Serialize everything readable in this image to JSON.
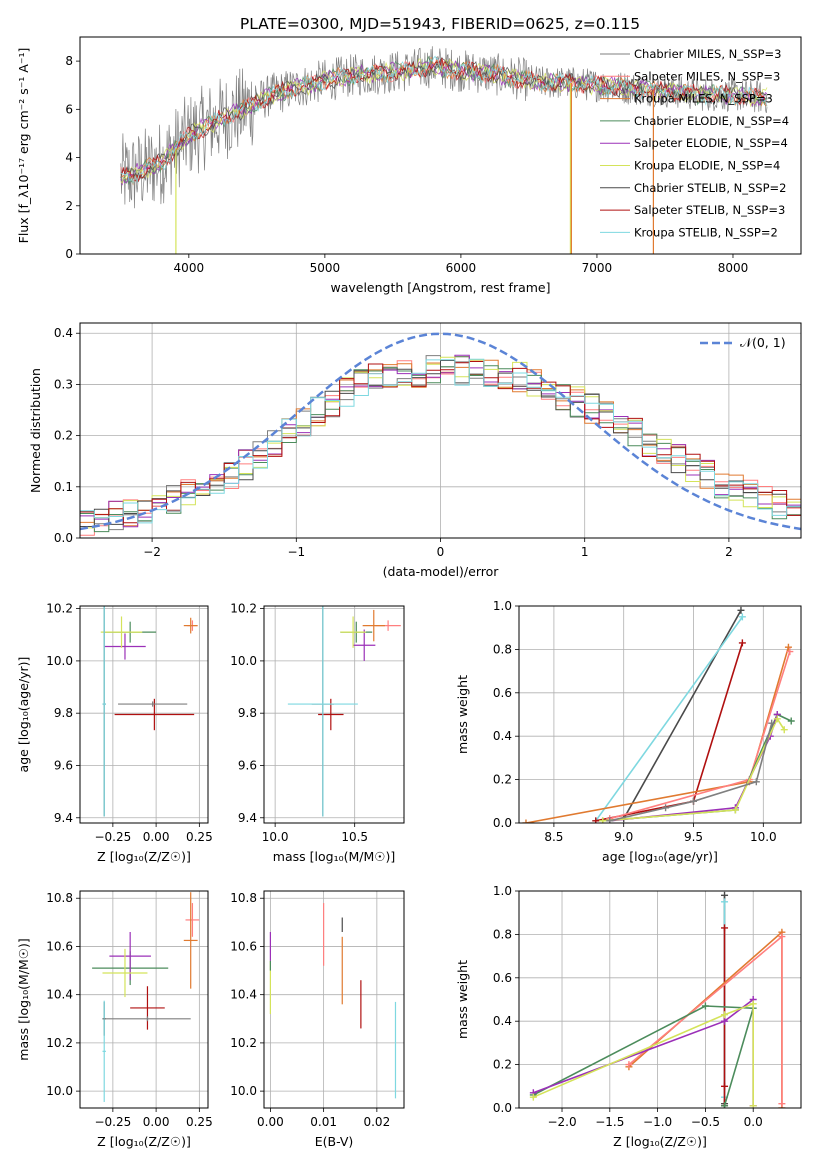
{
  "figure": {
    "title": "PLATE=0300, MJD=51943, FIBERID=0625, z=0.115"
  },
  "chart_data": [
    {
      "id": "spectrum",
      "type": "line",
      "xlabel": "wavelength [Angstrom, rest frame]",
      "ylabel": "Flux [f_λ10⁻¹⁷ erg cm⁻² s⁻¹ A⁻¹]",
      "xlim": [
        3200,
        8500
      ],
      "ylim": [
        0,
        9
      ],
      "xticks": [
        "4000",
        "5000",
        "6000",
        "7000",
        "8000"
      ],
      "yticks": [
        "0",
        "2",
        "4",
        "6",
        "8"
      ],
      "grid": false,
      "legend_position": "upper-right",
      "data_shape": {
        "x": [
          3500,
          3600,
          3800,
          4000,
          4200,
          4400,
          4600,
          4800,
          5000,
          5200,
          5400,
          5600,
          5800,
          6000,
          6200,
          6400,
          6600,
          6800,
          7000,
          7200,
          7400,
          7600,
          7800,
          8000,
          8200,
          8250
        ],
        "y": [
          3.2,
          3.3,
          3.8,
          4.9,
          5.5,
          6.0,
          6.6,
          6.9,
          7.2,
          7.4,
          7.5,
          7.6,
          7.8,
          7.6,
          7.5,
          7.3,
          7.1,
          7.1,
          7.0,
          6.9,
          6.8,
          6.7,
          6.6,
          6.6,
          6.5,
          6.5
        ]
      },
      "series": [
        {
          "name": "Chabrier MILES, N_SSP=3",
          "color": "#7f7f7f"
        },
        {
          "name": "Salpeter MILES, N_SSP=3",
          "color": "#ff7f7f"
        },
        {
          "name": "Kroupa MILES, N_SSP=3",
          "color": "#e07a30"
        },
        {
          "name": "Chabrier ELODIE, N_SSP=4",
          "color": "#4c8c5c"
        },
        {
          "name": "Salpeter ELODIE, N_SSP=4",
          "color": "#9b30b8"
        },
        {
          "name": "Kroupa ELODIE, N_SSP=4",
          "color": "#d4e35a"
        },
        {
          "name": "Chabrier STELIB, N_SSP=2",
          "color": "#4a4a4a"
        },
        {
          "name": "Salpeter STELIB, N_SSP=3",
          "color": "#b01010"
        },
        {
          "name": "Kroupa STELIB, N_SSP=2",
          "color": "#7ed8e0"
        }
      ]
    },
    {
      "id": "residuals",
      "type": "line",
      "xlabel": "(data-model)/error",
      "ylabel": "Normed distribution",
      "xlim": [
        -2.5,
        2.5
      ],
      "ylim": [
        0,
        0.42
      ],
      "xticks": [
        "−2",
        "−1",
        "0",
        "1",
        "2"
      ],
      "yticks": [
        "0.0",
        "0.1",
        "0.2",
        "0.3",
        "0.4"
      ],
      "grid": true,
      "legend": "𝒩(0, 1)",
      "legend_position": "upper-right",
      "gaussian": {
        "mu": 0,
        "sigma": 1,
        "color": "#5b84d6"
      },
      "histogram_envelope": {
        "x": [
          -2.5,
          -2.0,
          -1.5,
          -1.0,
          -0.5,
          0.0,
          0.5,
          1.0,
          1.5,
          2.0,
          2.5
        ],
        "y": [
          0.03,
          0.06,
          0.11,
          0.22,
          0.31,
          0.33,
          0.32,
          0.26,
          0.18,
          0.1,
          0.05
        ]
      }
    },
    {
      "id": "age-vs-Z",
      "type": "scatter",
      "xlabel": "Z [log₁₀(Z/Z☉)]",
      "ylabel": "age  [log₁₀(age/yr)]",
      "xlim": [
        -0.44,
        0.3
      ],
      "ylim": [
        9.38,
        10.21
      ],
      "xticks": [
        "−0.25",
        "0.00",
        "0.25"
      ],
      "yticks": [
        "9.4",
        "9.6",
        "9.8",
        "10.0",
        "10.2"
      ],
      "grid": true,
      "points": [
        {
          "series": "Salpeter MILES, N_SSP=3",
          "x": 0.21,
          "y": 10.135,
          "ex": 0.03,
          "ey": 0.02
        },
        {
          "series": "Kroupa MILES, N_SSP=3",
          "x": 0.2,
          "y": 10.135,
          "ex": 0.04,
          "ey": 0.03
        },
        {
          "series": "Chabrier ELODIE, N_SSP=4",
          "x": -0.15,
          "y": 10.11,
          "ex": 0.15,
          "ey": 0.04
        },
        {
          "series": "Salpeter ELODIE, N_SSP=4",
          "x": -0.18,
          "y": 10.055,
          "ex": 0.12,
          "ey": 0.05
        },
        {
          "series": "Kroupa ELODIE, N_SSP=4",
          "x": -0.2,
          "y": 10.11,
          "ex": 0.12,
          "ey": 0.06
        },
        {
          "series": "Chabrier STELIB, N_SSP=2",
          "x": -0.3,
          "y": 9.835,
          "ex": 0.01,
          "ey": 0.43
        },
        {
          "series": "Salpeter STELIB, N_SSP=3",
          "x": -0.01,
          "y": 9.795,
          "ex": 0.23,
          "ey": 0.06
        },
        {
          "series": "Kroupa STELIB, N_SSP=2",
          "x": -0.3,
          "y": 9.835,
          "ex": 0.01,
          "ey": 0.43
        },
        {
          "series": "Chabrier MILES, N_SSP=3",
          "x": -0.02,
          "y": 9.835,
          "ex": 0.2,
          "ey": 0.01
        }
      ]
    },
    {
      "id": "age-vs-mass",
      "type": "scatter",
      "xlabel": "mass [log₁₀(M/M☉)]",
      "ylabel": "",
      "xlim": [
        9.93,
        10.81
      ],
      "ylim": [
        9.38,
        10.21
      ],
      "xticks": [
        "10.0",
        "10.5"
      ],
      "yticks": [
        "9.4",
        "9.6",
        "9.8",
        "10.0",
        "10.2"
      ],
      "grid": true,
      "points": [
        {
          "series": "Salpeter MILES, N_SSP=3",
          "x": 10.71,
          "y": 10.135,
          "ex": 0.08,
          "ey": 0.02
        },
        {
          "series": "Kroupa MILES, N_SSP=3",
          "x": 10.62,
          "y": 10.135,
          "ex": 0.07,
          "ey": 0.06
        },
        {
          "series": "Chabrier ELODIE, N_SSP=4",
          "x": 10.51,
          "y": 10.11,
          "ex": 0.1,
          "ey": 0.04
        },
        {
          "series": "Salpeter ELODIE, N_SSP=4",
          "x": 10.56,
          "y": 10.06,
          "ex": 0.07,
          "ey": 0.06
        },
        {
          "series": "Kroupa ELODIE, N_SSP=4",
          "x": 10.49,
          "y": 10.11,
          "ex": 0.08,
          "ey": 0.06
        },
        {
          "series": "Chabrier STELIB, N_SSP=2",
          "x": 10.3,
          "y": 9.835,
          "ex": 0.07,
          "ey": 0.43
        },
        {
          "series": "Salpeter STELIB, N_SSP=3",
          "x": 10.35,
          "y": 9.795,
          "ex": 0.08,
          "ey": 0.06
        },
        {
          "series": "Kroupa STELIB, N_SSP=2",
          "x": 10.3,
          "y": 9.835,
          "ex": 0.22,
          "ey": 0.43
        }
      ]
    },
    {
      "id": "weight-vs-age",
      "type": "line",
      "xlabel": "age  [log₁₀(age/yr)]",
      "ylabel": "mass weight",
      "xlim": [
        8.25,
        10.27
      ],
      "ylim": [
        0,
        1
      ],
      "xticks": [
        "8.5",
        "9.0",
        "9.5",
        "10.0"
      ],
      "yticks": [
        "0.0",
        "0.2",
        "0.4",
        "0.6",
        "0.8",
        "1.0"
      ],
      "grid": true,
      "series": [
        {
          "name": "Chabrier STELIB, N_SSP=2",
          "x": [
            9.0,
            9.84
          ],
          "y": [
            0.02,
            0.98
          ]
        },
        {
          "name": "Kroupa STELIB, N_SSP=2",
          "x": [
            8.8,
            9.85
          ],
          "y": [
            0.01,
            0.95
          ]
        },
        {
          "name": "Salpeter STELIB, N_SSP=3",
          "x": [
            8.8,
            9.5,
            9.85
          ],
          "y": [
            0.01,
            0.1,
            0.83
          ]
        },
        {
          "name": "Kroupa MILES, N_SSP=3",
          "x": [
            8.3,
            9.9,
            10.18
          ],
          "y": [
            0.0,
            0.19,
            0.81
          ]
        },
        {
          "name": "Salpeter MILES, N_SSP=3",
          "x": [
            8.9,
            9.9,
            10.19
          ],
          "y": [
            0.02,
            0.2,
            0.79
          ]
        },
        {
          "name": "Chabrier ELODIE, N_SSP=4",
          "x": [
            8.85,
            9.8,
            10.1,
            10.2
          ],
          "y": [
            0.01,
            0.06,
            0.5,
            0.47
          ]
        },
        {
          "name": "Salpeter ELODIE, N_SSP=4",
          "x": [
            8.9,
            9.8,
            10.05,
            10.1
          ],
          "y": [
            0.01,
            0.07,
            0.4,
            0.5
          ]
        },
        {
          "name": "Kroupa ELODIE, N_SSP=4",
          "x": [
            8.85,
            9.8,
            10.1,
            10.15
          ],
          "y": [
            0.01,
            0.06,
            0.48,
            0.43
          ]
        },
        {
          "name": "Chabrier MILES, N_SSP=3",
          "x": [
            8.9,
            9.3,
            9.5,
            9.95,
            10.06
          ],
          "y": [
            0.01,
            0.07,
            0.1,
            0.19,
            0.46
          ]
        }
      ]
    },
    {
      "id": "mass-vs-Z",
      "type": "scatter",
      "xlabel": "Z [log₁₀(Z/Z☉)]",
      "ylabel": "mass [log₁₀(M/M☉)]",
      "xlim": [
        -0.44,
        0.3
      ],
      "ylim": [
        9.93,
        10.83
      ],
      "xticks": [
        "−0.25",
        "0.00",
        "0.25"
      ],
      "yticks": [
        "10.0",
        "10.2",
        "10.4",
        "10.6",
        "10.8"
      ],
      "grid": true,
      "points": [
        {
          "series": "Salpeter MILES, N_SSP=3",
          "x": 0.21,
          "y": 10.71,
          "ex": 0.04,
          "ey": 0.07
        },
        {
          "series": "Kroupa MILES, N_SSP=3",
          "x": 0.2,
          "y": 10.625,
          "ex": 0.04,
          "ey": 0.2
        },
        {
          "series": "Chabrier ELODIE, N_SSP=4",
          "x": -0.15,
          "y": 10.51,
          "ex": 0.22,
          "ey": 0.07
        },
        {
          "series": "Salpeter ELODIE, N_SSP=4",
          "x": -0.15,
          "y": 10.56,
          "ex": 0.12,
          "ey": 0.1
        },
        {
          "series": "Kroupa ELODIE, N_SSP=4",
          "x": -0.18,
          "y": 10.49,
          "ex": 0.13,
          "ey": 0.1
        },
        {
          "series": "Chabrier STELIB, N_SSP=2",
          "x": -0.3,
          "y": 10.3,
          "ex": 0.01,
          "ey": 0.07
        },
        {
          "series": "Salpeter STELIB, N_SSP=3",
          "x": -0.05,
          "y": 10.345,
          "ex": 0.1,
          "ey": 0.09
        },
        {
          "series": "Kroupa STELIB, N_SSP=2",
          "x": -0.3,
          "y": 10.165,
          "ex": 0.01,
          "ey": 0.21
        },
        {
          "series": "Chabrier MILES, N_SSP=3",
          "x": -0.05,
          "y": 10.3,
          "ex": 0.25,
          "ey": 0.01
        }
      ]
    },
    {
      "id": "mass-vs-ebv",
      "type": "scatter",
      "xlabel": "E(B-V)",
      "ylabel": "",
      "xlim": [
        -0.0012,
        0.0251
      ],
      "ylim": [
        9.93,
        10.83
      ],
      "xticks": [
        "0.00",
        "0.01",
        "0.02"
      ],
      "yticks": [
        "10.0",
        "10.2",
        "10.4",
        "10.6",
        "10.8"
      ],
      "grid": true,
      "points": [
        {
          "series": "Salpeter ELODIE, N_SSP=4",
          "x": 0.0,
          "y": 10.6,
          "ex": 0.0,
          "ey": 0.06
        },
        {
          "series": "Kroupa ELODIE, N_SSP=4",
          "x": 0.0,
          "y": 10.43,
          "ex": 0.0,
          "ey": 0.11
        },
        {
          "series": "Chabrier ELODIE, N_SSP=4",
          "x": 0.0,
          "y": 10.52,
          "ex": 0.0,
          "ey": 0.02
        },
        {
          "series": "Salpeter MILES, N_SSP=3",
          "x": 0.01,
          "y": 10.65,
          "ex": 0.0,
          "ey": 0.13
        },
        {
          "series": "Kroupa MILES, N_SSP=3",
          "x": 0.0135,
          "y": 10.5,
          "ex": 0.0,
          "ey": 0.14
        },
        {
          "series": "Chabrier STELIB, N_SSP=2",
          "x": 0.0135,
          "y": 10.69,
          "ex": 0.0,
          "ey": 0.03
        },
        {
          "series": "Salpeter STELIB, N_SSP=3",
          "x": 0.017,
          "y": 10.36,
          "ex": 0.0,
          "ey": 0.1
        },
        {
          "series": "Kroupa STELIB, N_SSP=2",
          "x": 0.0235,
          "y": 10.17,
          "ex": 0.0,
          "ey": 0.2
        }
      ]
    },
    {
      "id": "weight-vs-Z",
      "type": "line",
      "xlabel": "Z [log₁₀(Z/Z☉)]",
      "ylabel": "mass weight",
      "xlim": [
        -2.45,
        0.5
      ],
      "ylim": [
        0,
        1
      ],
      "xticks": [
        "−2.0",
        "−1.5",
        "−1.0",
        "−0.5",
        "0.0"
      ],
      "yticks": [
        "0.0",
        "0.2",
        "0.4",
        "0.6",
        "0.8",
        "1.0"
      ],
      "grid": true,
      "series": [
        {
          "name": "Chabrier STELIB, N_SSP=2",
          "x": [
            -0.3,
            -0.3
          ],
          "y": [
            0.02,
            0.98
          ]
        },
        {
          "name": "Kroupa STELIB, N_SSP=2",
          "x": [
            -0.3,
            -0.3
          ],
          "y": [
            0.05,
            0.95
          ]
        },
        {
          "name": "Salpeter STELIB, N_SSP=3",
          "x": [
            -0.3,
            -0.3,
            -0.3
          ],
          "y": [
            0.1,
            0.01,
            0.83
          ]
        },
        {
          "name": "Kroupa MILES, N_SSP=3",
          "x": [
            -1.3,
            0.3,
            0.3
          ],
          "y": [
            0.19,
            0.81,
            0.0
          ]
        },
        {
          "name": "Salpeter MILES, N_SSP=3",
          "x": [
            -1.3,
            0.3,
            0.3
          ],
          "y": [
            0.2,
            0.79,
            0.02
          ]
        },
        {
          "name": "Chabrier ELODIE, N_SSP=4",
          "x": [
            -2.3,
            -0.5,
            0.0,
            -0.3
          ],
          "y": [
            0.06,
            0.47,
            0.46,
            0.01
          ]
        },
        {
          "name": "Salpeter ELODIE, N_SSP=4",
          "x": [
            -2.3,
            -0.3,
            0.0,
            0.0
          ],
          "y": [
            0.07,
            0.4,
            0.5,
            0.01
          ]
        },
        {
          "name": "Kroupa ELODIE, N_SSP=4",
          "x": [
            -2.3,
            -0.3,
            0.0,
            0.0
          ],
          "y": [
            0.05,
            0.43,
            0.48,
            0.01
          ]
        }
      ]
    }
  ]
}
